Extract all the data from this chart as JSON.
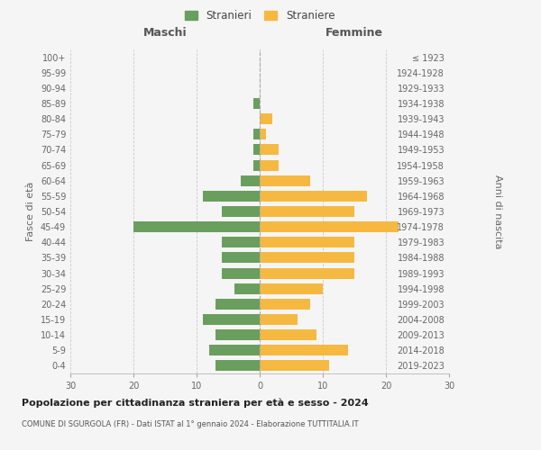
{
  "age_groups": [
    "0-4",
    "5-9",
    "10-14",
    "15-19",
    "20-24",
    "25-29",
    "30-34",
    "35-39",
    "40-44",
    "45-49",
    "50-54",
    "55-59",
    "60-64",
    "65-69",
    "70-74",
    "75-79",
    "80-84",
    "85-89",
    "90-94",
    "95-99",
    "100+"
  ],
  "birth_years": [
    "2019-2023",
    "2014-2018",
    "2009-2013",
    "2004-2008",
    "1999-2003",
    "1994-1998",
    "1989-1993",
    "1984-1988",
    "1979-1983",
    "1974-1978",
    "1969-1973",
    "1964-1968",
    "1959-1963",
    "1954-1958",
    "1949-1953",
    "1944-1948",
    "1939-1943",
    "1934-1938",
    "1929-1933",
    "1924-1928",
    "≤ 1923"
  ],
  "males": [
    7,
    8,
    7,
    9,
    7,
    4,
    6,
    6,
    6,
    20,
    6,
    9,
    3,
    1,
    1,
    1,
    0,
    1,
    0,
    0,
    0
  ],
  "females": [
    11,
    14,
    9,
    6,
    8,
    10,
    15,
    15,
    15,
    22,
    15,
    17,
    8,
    3,
    3,
    1,
    2,
    0,
    0,
    0,
    0
  ],
  "male_color": "#6a9e5e",
  "female_color": "#f5b942",
  "background_color": "#f5f5f5",
  "grid_color": "#cccccc",
  "title": "Popolazione per cittadinanza straniera per età e sesso - 2024",
  "subtitle": "COMUNE DI SGURGOLA (FR) - Dati ISTAT al 1° gennaio 2024 - Elaborazione TUTTITALIA.IT",
  "xlabel_left": "Maschi",
  "xlabel_right": "Femmine",
  "ylabel_left": "Fasce di età",
  "ylabel_right": "Anni di nascita",
  "legend_male": "Stranieri",
  "legend_female": "Straniere",
  "xlim": 30
}
